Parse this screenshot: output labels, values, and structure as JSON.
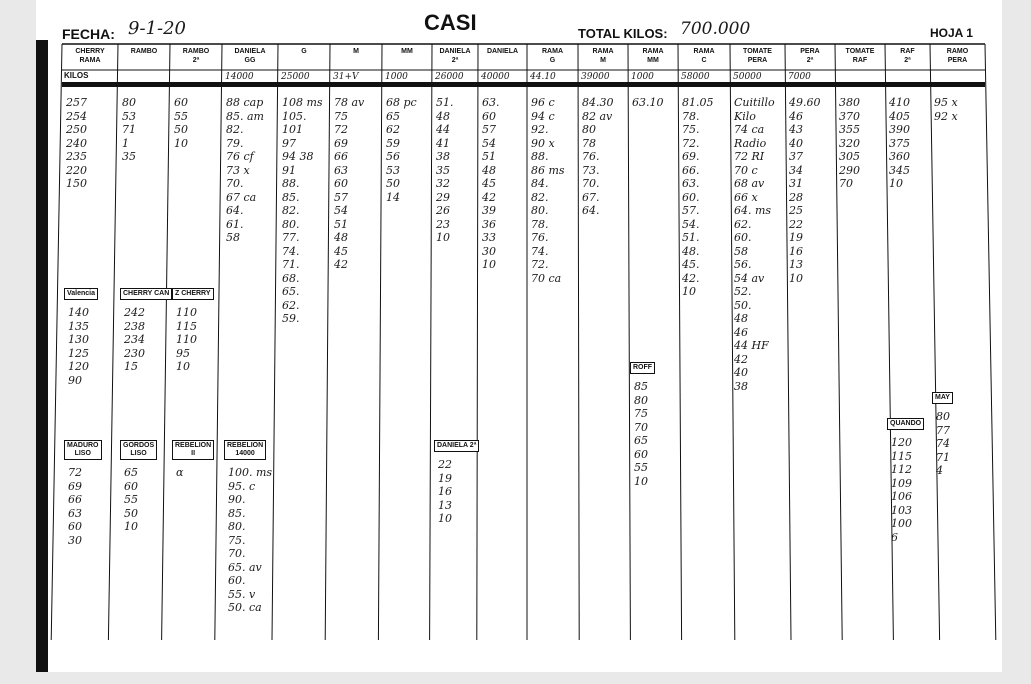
{
  "header": {
    "date_label": "FECHA:",
    "date": "9-1-20",
    "title": "CASI",
    "total_label": "TOTAL KILOS:",
    "total": "700.000",
    "sheet": "HOJA 1"
  },
  "kilos_label": "KILOS",
  "columns": [
    {
      "header": [
        "CHERRY",
        "RAMA"
      ],
      "kilos": "",
      "entries": [
        "257",
        "254",
        "250",
        "240",
        "235",
        "220",
        "150"
      ]
    },
    {
      "header": [
        "RAMBO"
      ],
      "kilos": "",
      "entries": [
        "80",
        "53",
        "71",
        "1",
        "35"
      ]
    },
    {
      "header": [
        "RAMBO",
        "2ª"
      ],
      "kilos": "",
      "entries": [
        "60",
        "55",
        "50",
        "10"
      ]
    },
    {
      "header": [
        "DANIELA",
        "GG"
      ],
      "kilos": "14000",
      "entries": [
        "88 cap",
        "85. am",
        "82.",
        "79.",
        "76 cf",
        "73 x",
        "70.",
        "67 ca",
        "64.",
        "61.",
        "58"
      ]
    },
    {
      "header": [
        "G"
      ],
      "kilos": "25000",
      "entries": [
        "108 ms",
        "105.",
        "101",
        "97",
        "94 38",
        "91",
        "88.",
        "85.",
        "82.",
        "80.",
        "77.",
        "74.",
        "71.",
        "68.",
        "65.",
        "62.",
        "59."
      ]
    },
    {
      "header": [
        "M"
      ],
      "kilos": "31+V",
      "entries": [
        "78 av",
        "75",
        "72",
        "69",
        "66",
        "63",
        "60",
        "57",
        "54",
        "51",
        "48",
        "45",
        "42"
      ]
    },
    {
      "header": [
        "MM"
      ],
      "kilos": "1000",
      "entries": [
        "68 pc",
        "65",
        "62",
        "59",
        "56",
        "53",
        "50",
        "14"
      ]
    },
    {
      "header": [
        "DANIELA",
        "2ª"
      ],
      "kilos": "26000",
      "entries": [
        "51.",
        "48",
        "44",
        "41",
        "38",
        "35",
        "32",
        "29",
        "26",
        "23",
        "10"
      ]
    },
    {
      "header": [
        "DANIELA"
      ],
      "kilos": "40000",
      "entries": [
        "63.",
        "60",
        "57",
        "54",
        "51",
        "48",
        "45",
        "42",
        "39",
        "36",
        "33",
        "30",
        "10"
      ]
    },
    {
      "header": [
        "RAMA",
        "G"
      ],
      "kilos": "44.10",
      "entries": [
        "96 c",
        "94 c",
        "92.",
        "90 x",
        "88.",
        "86 ms",
        "84.",
        "82.",
        "80.",
        "78.",
        "76.",
        "74.",
        "72.",
        "70 ca"
      ]
    },
    {
      "header": [
        "RAMA",
        "M"
      ],
      "kilos": "39000",
      "entries": [
        "84.30",
        "82 av",
        "80",
        "78",
        "76.",
        "73.",
        "70.",
        "67.",
        "64."
      ]
    },
    {
      "header": [
        "RAMA",
        "MM"
      ],
      "kilos": "1000",
      "entries": [
        "63.10"
      ]
    },
    {
      "header": [
        "RAMA",
        "C"
      ],
      "kilos": "58000",
      "entries": [
        "81.05",
        "78.",
        "75.",
        "72.",
        "69.",
        "66.",
        "63.",
        "60.",
        "57.",
        "54.",
        "51.",
        "48.",
        "45.",
        "42.",
        "10"
      ]
    },
    {
      "header": [
        "TOMATE",
        "PERA"
      ],
      "kilos": "50000",
      "entries": [
        "Cuitillo",
        "Kilo",
        "74 ca",
        "Radio",
        "72 RI",
        "70 c",
        "68 av",
        "66 x",
        "64. ms",
        "62.",
        "60.",
        "58",
        "56.",
        "54 av",
        "52.",
        "50.",
        "48",
        "46",
        "44 HF",
        "42",
        "40",
        "38"
      ]
    },
    {
      "header": [
        "PERA",
        "2ª"
      ],
      "kilos": "7000",
      "entries": [
        "49.60",
        "46",
        "43",
        "40",
        "37",
        "34",
        "31",
        "28",
        "25",
        "22",
        "19",
        "16",
        "13",
        "10"
      ]
    },
    {
      "header": [
        "TOMATE",
        "RAF"
      ],
      "kilos": "",
      "entries": [
        "380",
        "370",
        "355",
        "320",
        "305",
        "290",
        "70"
      ]
    },
    {
      "header": [
        "RAF",
        "2ª"
      ],
      "kilos": "",
      "entries": [
        "410",
        "405",
        "390",
        "375",
        "360",
        "345",
        "10"
      ]
    },
    {
      "header": [
        "RAMO",
        "PERA"
      ],
      "kilos": "",
      "entries": [
        "95 x",
        "92 x"
      ]
    }
  ],
  "blocks": [
    {
      "title": [
        "Valencia"
      ],
      "entries": [
        "140",
        "135",
        "130",
        "125",
        "120",
        "90"
      ]
    },
    {
      "title": [
        "CHERRY CAN"
      ],
      "entries": [
        "242",
        "238",
        "234",
        "230",
        "15"
      ]
    },
    {
      "title": [
        "Z CHERRY"
      ],
      "entries": [
        "110",
        "115",
        "110",
        "95",
        "10"
      ]
    },
    {
      "title": [
        "MADURO",
        "LISO"
      ],
      "entries": [
        "72",
        "69",
        "66",
        "63",
        "60",
        "30"
      ]
    },
    {
      "title": [
        "GORDOS",
        "LISO"
      ],
      "entries": [
        "65",
        "60",
        "55",
        "50",
        "10"
      ]
    },
    {
      "title": [
        "REBELION",
        "II"
      ],
      "entries": [
        "α"
      ]
    },
    {
      "title": [
        "REBELION",
        "14000"
      ],
      "entries": [
        "100. ms",
        "95. c",
        "90.",
        "85.",
        "80.",
        "75.",
        "70.",
        "65. av",
        "60.",
        "55. v",
        "50. ca"
      ]
    },
    {
      "title": [
        "DANIELA 2ª"
      ],
      "entries": [
        "22",
        "19",
        "16",
        "13",
        "10"
      ]
    },
    {
      "title": [
        "ROFF"
      ],
      "entries": [
        "85",
        "80",
        "75",
        "70",
        "65",
        "60",
        "55",
        "10"
      ]
    },
    {
      "title": [
        "QUANDO"
      ],
      "entries": [
        "120",
        "115",
        "112",
        "109",
        "106",
        "103",
        "100",
        "6"
      ]
    },
    {
      "title": [
        "MAY"
      ],
      "entries": [
        "80",
        "77",
        "74",
        "71",
        "4"
      ]
    }
  ]
}
